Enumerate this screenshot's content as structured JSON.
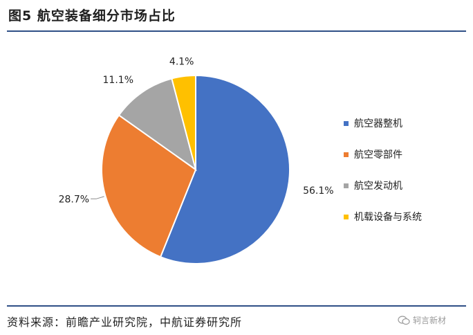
{
  "header": {
    "title": "图5  航空装备细分市场占比"
  },
  "footer": {
    "source": "资料来源：前瞻产业研究院，中航证券研究所",
    "watermark": "轲言新材"
  },
  "chart_data": {
    "type": "pie",
    "title": "",
    "start_angle_deg": 90,
    "direction": "clockwise",
    "slices": [
      {
        "label": "航空器整机",
        "value": 56.1,
        "value_label": "56.1%",
        "color": "#4472C4"
      },
      {
        "label": "航空零部件",
        "value": 28.7,
        "value_label": "28.7%",
        "color": "#ED7D31"
      },
      {
        "label": "航空发动机",
        "value": 11.1,
        "value_label": "11.1%",
        "color": "#A5A5A5"
      },
      {
        "label": "机载设备与系统",
        "value": 4.1,
        "value_label": "4.1%",
        "color": "#FFC000"
      }
    ],
    "legend_position": "right"
  }
}
